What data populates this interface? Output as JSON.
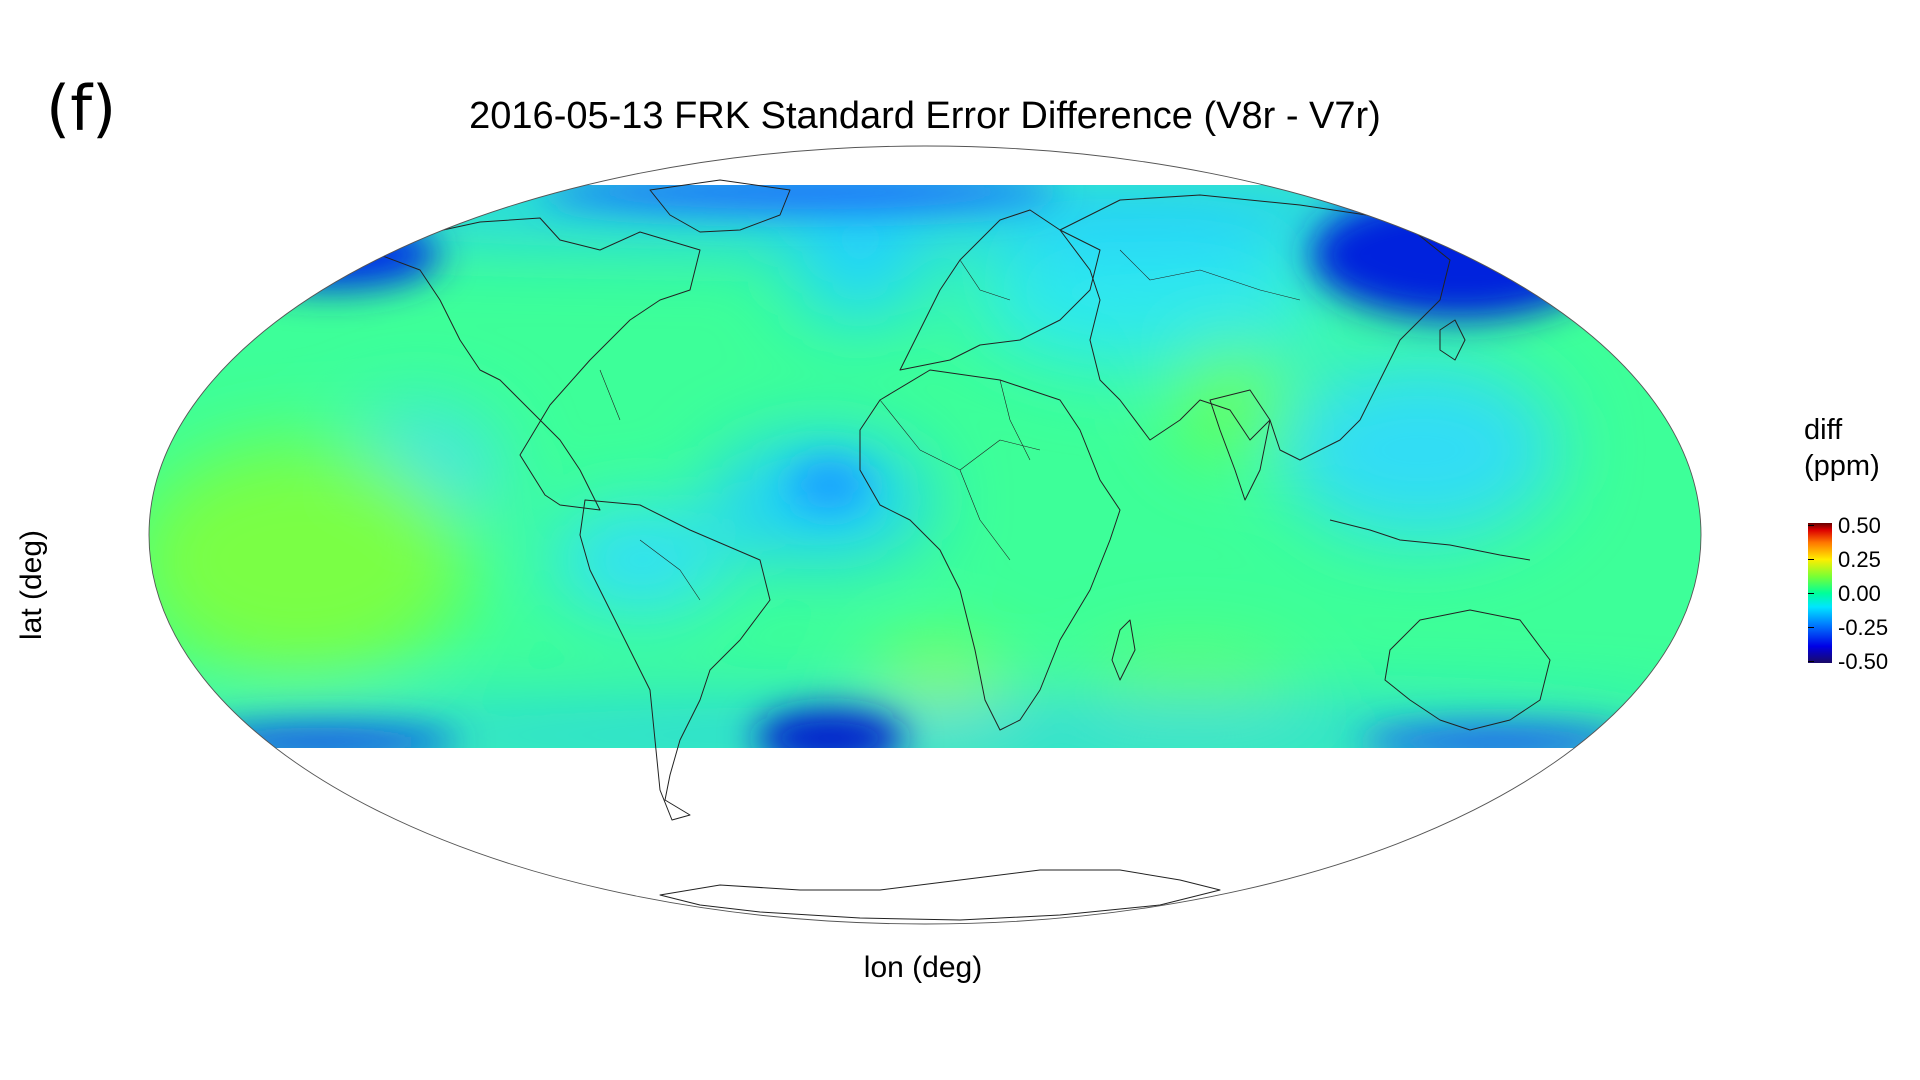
{
  "panel_label": "(f)",
  "title": "2016-05-13 FRK Standard Error Difference (V8r - V7r)",
  "xlabel": "lon (deg)",
  "ylabel": "lat (deg)",
  "legend": {
    "title_line1": "diff",
    "title_line2": "(ppm)",
    "ticks": [
      "0.50",
      "0.25",
      "0.00",
      "-0.25",
      "-0.50"
    ],
    "range": [
      -0.5,
      0.5
    ]
  },
  "map": {
    "projection": "mollweide",
    "data_lat_range": [
      -60,
      72
    ],
    "colors": {
      "background_field": "#33ff99",
      "low": "#0022dd",
      "mid_low": "#1ad6ff",
      "high": "#99ff33",
      "outline": "#555555",
      "coast": "#222222"
    }
  }
}
